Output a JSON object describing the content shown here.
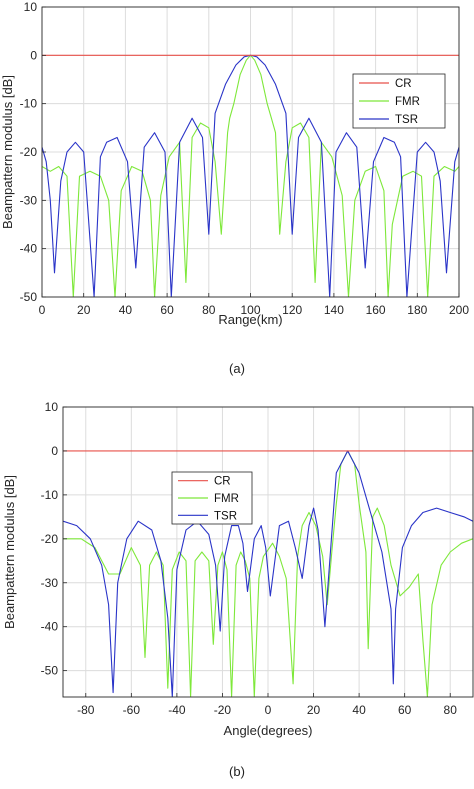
{
  "chart_data": [
    {
      "type": "line",
      "caption": "(a)",
      "xlabel": "Range(km)",
      "ylabel": "Beampattern modulus [dB]",
      "xlim": [
        0,
        200
      ],
      "ylim": [
        -50,
        10
      ],
      "xticks": [
        0,
        20,
        40,
        60,
        80,
        100,
        120,
        140,
        160,
        180,
        200
      ],
      "yticks": [
        10,
        0,
        -10,
        -20,
        -30,
        -40,
        -50
      ],
      "grid": true,
      "legend_position": "right",
      "series": [
        {
          "name": "CR",
          "color": "#e8514a",
          "x": [
            0,
            200
          ],
          "y": [
            0,
            0
          ]
        },
        {
          "name": "FMR",
          "color": "#7ee83a",
          "x": [
            0,
            4,
            8,
            12,
            15,
            18,
            23,
            28,
            32,
            35,
            38,
            43,
            48,
            52,
            54,
            57,
            61,
            66,
            69,
            72,
            76,
            80,
            83,
            86,
            89,
            90,
            92,
            95,
            98,
            100,
            102,
            105,
            108,
            110,
            112,
            114,
            117,
            120,
            124,
            128,
            131,
            134,
            139,
            144,
            147,
            150,
            155,
            160,
            164,
            166,
            168,
            173,
            178,
            182,
            185,
            188,
            193,
            198,
            200
          ],
          "y": [
            -23,
            -24,
            -23,
            -25,
            -50,
            -25,
            -24,
            -25,
            -30,
            -50,
            -28,
            -23,
            -24,
            -30,
            -50,
            -29,
            -21,
            -18,
            -47,
            -17,
            -14,
            -15,
            -22,
            -37,
            -16,
            -13,
            -10,
            -4,
            -1,
            0,
            -1,
            -4,
            -10,
            -13,
            -16,
            -37,
            -22,
            -15,
            -14,
            -17,
            -47,
            -18,
            -21,
            -29,
            -50,
            -30,
            -24,
            -23,
            -28,
            -50,
            -35,
            -25,
            -24,
            -25,
            -50,
            -25,
            -23,
            -24,
            -23
          ]
        },
        {
          "name": "TSR",
          "color": "#2a34c8",
          "x": [
            0,
            2,
            4,
            6,
            9,
            12,
            16,
            20,
            25,
            28,
            31,
            36,
            41,
            45,
            49,
            54,
            59,
            62,
            66,
            72,
            77,
            80,
            83,
            88,
            93,
            97,
            100,
            103,
            107,
            112,
            117,
            120,
            123,
            128,
            134,
            138,
            141,
            146,
            151,
            155,
            159,
            164,
            169,
            172,
            175,
            180,
            184,
            188,
            191,
            194,
            198,
            200
          ],
          "y": [
            -19,
            -22,
            -30,
            -45,
            -26,
            -20,
            -18,
            -20,
            -50,
            -21,
            -18,
            -17,
            -22,
            -44,
            -19,
            -16,
            -20,
            -50,
            -18,
            -13,
            -17,
            -37,
            -12,
            -6,
            -2,
            -0.3,
            0,
            -0.3,
            -2,
            -6,
            -12,
            -37,
            -17,
            -13,
            -18,
            -50,
            -20,
            -16,
            -19,
            -44,
            -22,
            -17,
            -18,
            -21,
            -50,
            -20,
            -18,
            -20,
            -26,
            -45,
            -22,
            -19
          ]
        }
      ]
    },
    {
      "type": "line",
      "caption": "(b)",
      "xlabel": "Angle(degrees)",
      "ylabel": "Beampattern modulus [dB]",
      "xlim": [
        -90,
        90
      ],
      "ylim": [
        -56,
        10
      ],
      "xticks": [
        -80,
        -60,
        -40,
        -20,
        0,
        20,
        40,
        60,
        80
      ],
      "yticks": [
        10,
        0,
        -10,
        -20,
        -30,
        -40,
        -50
      ],
      "grid": true,
      "legend_position": "top-left",
      "series": [
        {
          "name": "CR",
          "color": "#e8514a",
          "x": [
            -90,
            90
          ],
          "y": [
            0,
            0
          ]
        },
        {
          "name": "FMR",
          "color": "#7ee83a",
          "x": [
            -90,
            -82,
            -76,
            -70,
            -65,
            -60,
            -56,
            -54,
            -52,
            -49,
            -46,
            -44,
            -42,
            -39,
            -36,
            -34,
            -32,
            -29,
            -26,
            -24,
            -22,
            -20,
            -18,
            -16,
            -14,
            -12,
            -10,
            -8,
            -6,
            -4,
            -2,
            2,
            5,
            8,
            11,
            13,
            15,
            18,
            21,
            24,
            26,
            28,
            30,
            32,
            35,
            38,
            40,
            43,
            44,
            46,
            48,
            51,
            54,
            58,
            62,
            66,
            68,
            70,
            72,
            76,
            80,
            85,
            90
          ],
          "y": [
            -20,
            -20,
            -22,
            -28,
            -28,
            -22,
            -26,
            -47,
            -26,
            -23,
            -26,
            -54,
            -27,
            -23,
            -25,
            -56,
            -25,
            -23,
            -25,
            -44,
            -26,
            -23,
            -27,
            -56,
            -26,
            -23,
            -25,
            -29,
            -56,
            -29,
            -24,
            -21,
            -24,
            -29,
            -53,
            -24,
            -17,
            -14,
            -17,
            -24,
            -35,
            -23,
            -12,
            -3,
            0,
            -3,
            -12,
            -23,
            -45,
            -15,
            -13,
            -17,
            -26,
            -33,
            -31,
            -28,
            -43,
            -56,
            -35,
            -26,
            -23,
            -21,
            -20
          ]
        },
        {
          "name": "TSR",
          "color": "#2a34c8",
          "x": [
            -90,
            -84,
            -78,
            -73,
            -70,
            -68,
            -66,
            -62,
            -57,
            -51,
            -47,
            -44,
            -42,
            -40,
            -36,
            -31,
            -26,
            -23,
            -21,
            -19,
            -16,
            -13,
            -11,
            -9,
            -6,
            -3,
            -1,
            1,
            5,
            9,
            12,
            15,
            18,
            20,
            22,
            25,
            30,
            35,
            40,
            45,
            50,
            54,
            55,
            56,
            59,
            63,
            68,
            74,
            80,
            86,
            90
          ],
          "y": [
            -16,
            -17,
            -20,
            -26,
            -35,
            -55,
            -30,
            -20,
            -16,
            -18,
            -25,
            -38,
            -56,
            -27,
            -18,
            -16,
            -19,
            -26,
            -41,
            -24,
            -17,
            -17,
            -21,
            -32,
            -20,
            -17,
            -22,
            -33,
            -17,
            -16,
            -22,
            -29,
            -17,
            -13,
            -18,
            -40,
            -5,
            0,
            -5,
            -14,
            -23,
            -36,
            -53,
            -36,
            -22,
            -17,
            -14,
            -13,
            -14,
            -15,
            -16
          ]
        }
      ]
    }
  ]
}
